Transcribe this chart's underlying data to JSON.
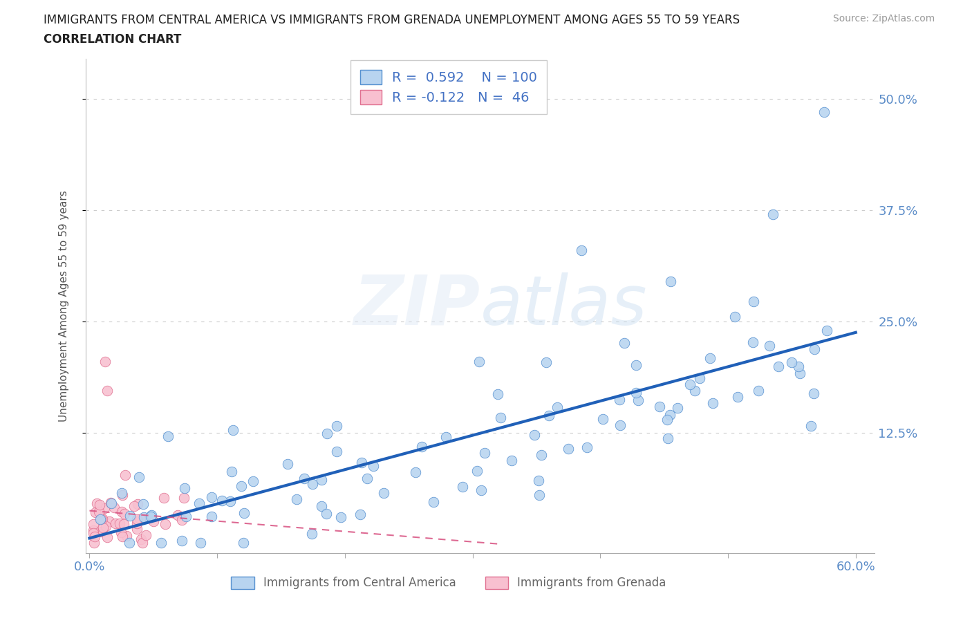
{
  "title_line1": "IMMIGRANTS FROM CENTRAL AMERICA VS IMMIGRANTS FROM GRENADA UNEMPLOYMENT AMONG AGES 55 TO 59 YEARS",
  "title_line2": "CORRELATION CHART",
  "source": "Source: ZipAtlas.com",
  "ylabel": "Unemployment Among Ages 55 to 59 years",
  "xmin": 0.0,
  "xmax": 0.6,
  "ymin": 0.0,
  "ymax": 0.545,
  "R_blue": 0.592,
  "N_blue": 100,
  "R_pink": -0.122,
  "N_pink": 46,
  "blue_fill": "#b8d4f0",
  "blue_edge": "#5590d0",
  "blue_line": "#2060b8",
  "pink_fill": "#f8c0d0",
  "pink_edge": "#e07090",
  "pink_line": "#d85080",
  "watermark_color": "#dce8f5",
  "legend_label_blue": "Immigrants from Central America",
  "legend_label_pink": "Immigrants from Grenada",
  "grid_color": "#cccccc",
  "axis_color": "#aaaaaa",
  "tick_label_color": "#5b8cc8",
  "title_color": "#222222",
  "ylabel_color": "#555555",
  "source_color": "#999999",
  "legend_text_color": "#4472c4"
}
